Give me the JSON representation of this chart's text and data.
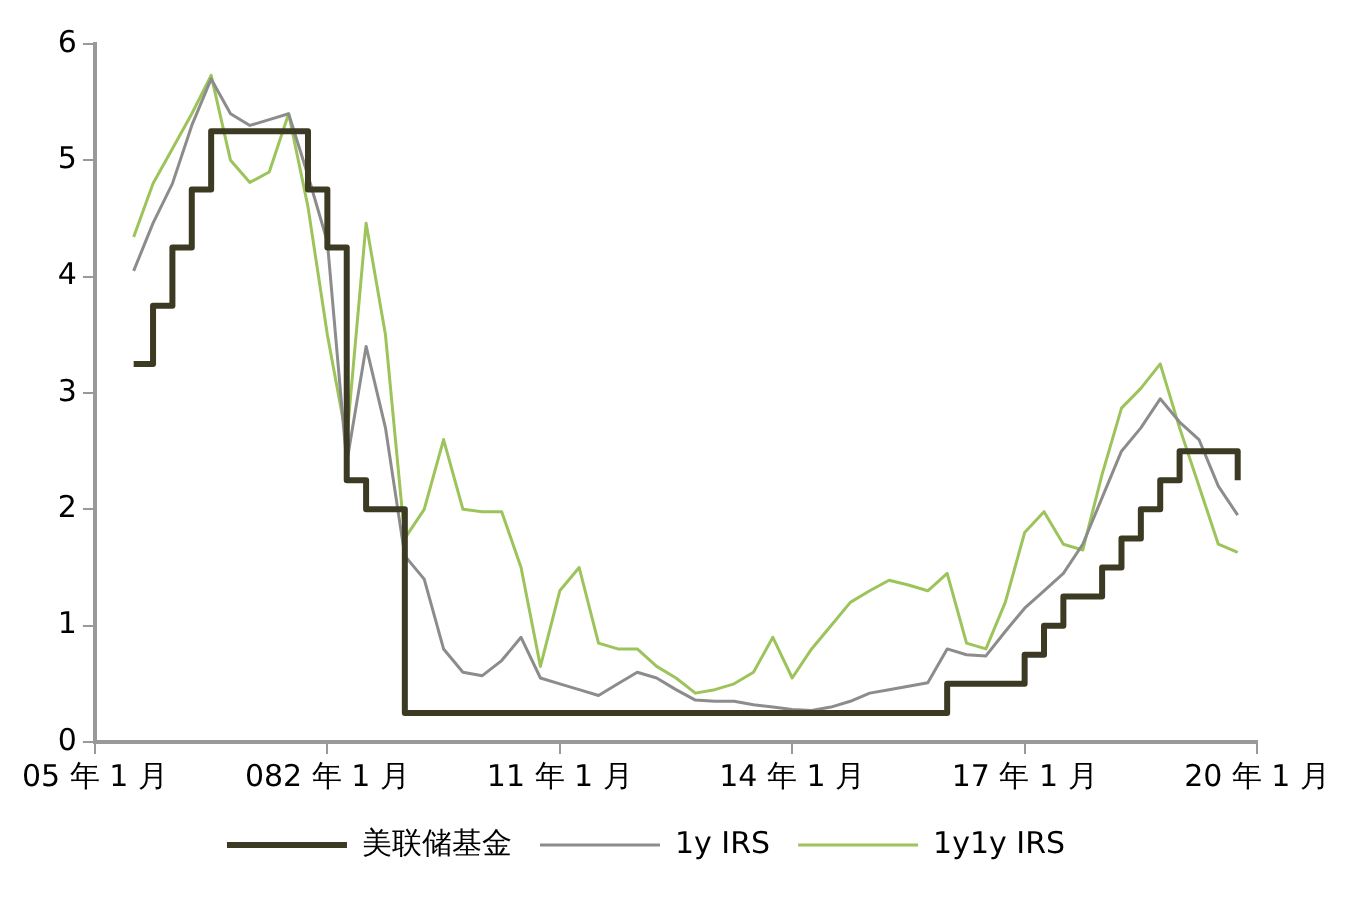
{
  "chart_data": {
    "type": "line",
    "categories": [
      "05 年 1 月",
      null,
      null,
      null,
      null,
      null,
      null,
      null,
      null,
      null,
      null,
      null,
      "082 年 1 月",
      null,
      null,
      null,
      null,
      null,
      null,
      null,
      null,
      null,
      null,
      null,
      "11 年 1 月",
      null,
      null,
      null,
      null,
      null,
      null,
      null,
      null,
      null,
      null,
      null,
      "14 年 1 月",
      null,
      null,
      null,
      null,
      null,
      null,
      null,
      null,
      null,
      null,
      null,
      "17 年 1 月",
      null,
      null,
      null,
      null,
      null,
      null,
      null,
      null,
      null,
      null,
      null,
      "20 年 1 月"
    ],
    "ylim": [
      0,
      6
    ],
    "yticks": [
      0,
      1,
      2,
      3,
      4,
      5,
      6
    ],
    "grid": false,
    "legend": "bottom",
    "marker": "none",
    "line_style": "solid",
    "series": [
      {
        "name": "美联储基金",
        "type": "step",
        "color": "#3d3a24",
        "values": [
          null,
          null,
          3.25,
          3.75,
          4.25,
          4.75,
          5.25,
          5.25,
          5.25,
          5.25,
          5.25,
          4.75,
          4.25,
          2.25,
          2.0,
          2.0,
          0.25,
          0.25,
          0.25,
          0.25,
          0.25,
          0.25,
          0.25,
          0.25,
          0.25,
          0.25,
          0.25,
          0.25,
          0.25,
          0.25,
          0.25,
          0.25,
          0.25,
          0.25,
          0.25,
          0.25,
          0.25,
          0.25,
          0.25,
          0.25,
          0.25,
          0.25,
          0.25,
          0.25,
          0.5,
          0.5,
          0.5,
          0.5,
          0.75,
          1.0,
          1.25,
          1.25,
          1.5,
          1.75,
          2.0,
          2.25,
          2.5,
          2.5,
          2.5,
          2.25,
          null
        ]
      },
      {
        "name": "1y IRS",
        "color": "#8c8c8c",
        "values": [
          null,
          null,
          4.05,
          4.46,
          4.8,
          5.3,
          5.7,
          5.4,
          5.3,
          5.35,
          5.4,
          4.87,
          4.3,
          2.4,
          3.4,
          2.7,
          1.6,
          1.4,
          0.8,
          0.6,
          0.57,
          0.7,
          0.9,
          0.55,
          0.5,
          0.45,
          0.4,
          0.5,
          0.6,
          0.55,
          0.45,
          0.36,
          0.35,
          0.35,
          0.32,
          0.3,
          0.28,
          0.27,
          0.3,
          0.35,
          0.42,
          0.45,
          0.48,
          0.51,
          0.8,
          0.75,
          0.74,
          0.95,
          1.15,
          1.3,
          1.45,
          1.7,
          2.1,
          2.5,
          2.7,
          2.95,
          2.75,
          2.6,
          2.2,
          1.95,
          null
        ]
      },
      {
        "name": "1y1y IRS",
        "color": "#9cc45a",
        "values": [
          null,
          null,
          4.34,
          4.8,
          5.1,
          5.4,
          5.73,
          5.0,
          4.81,
          4.9,
          5.4,
          4.6,
          3.5,
          2.6,
          4.46,
          3.5,
          1.75,
          2.0,
          2.6,
          2.0,
          1.98,
          1.98,
          1.5,
          0.65,
          1.3,
          1.5,
          0.85,
          0.8,
          0.8,
          0.65,
          0.55,
          0.42,
          0.45,
          0.5,
          0.6,
          0.9,
          0.55,
          0.8,
          1.0,
          1.2,
          1.3,
          1.39,
          1.35,
          1.3,
          1.45,
          0.85,
          0.8,
          1.2,
          1.8,
          1.98,
          1.7,
          1.65,
          2.3,
          2.87,
          3.04,
          3.25,
          2.7,
          2.2,
          1.7,
          1.63,
          null
        ]
      }
    ]
  }
}
